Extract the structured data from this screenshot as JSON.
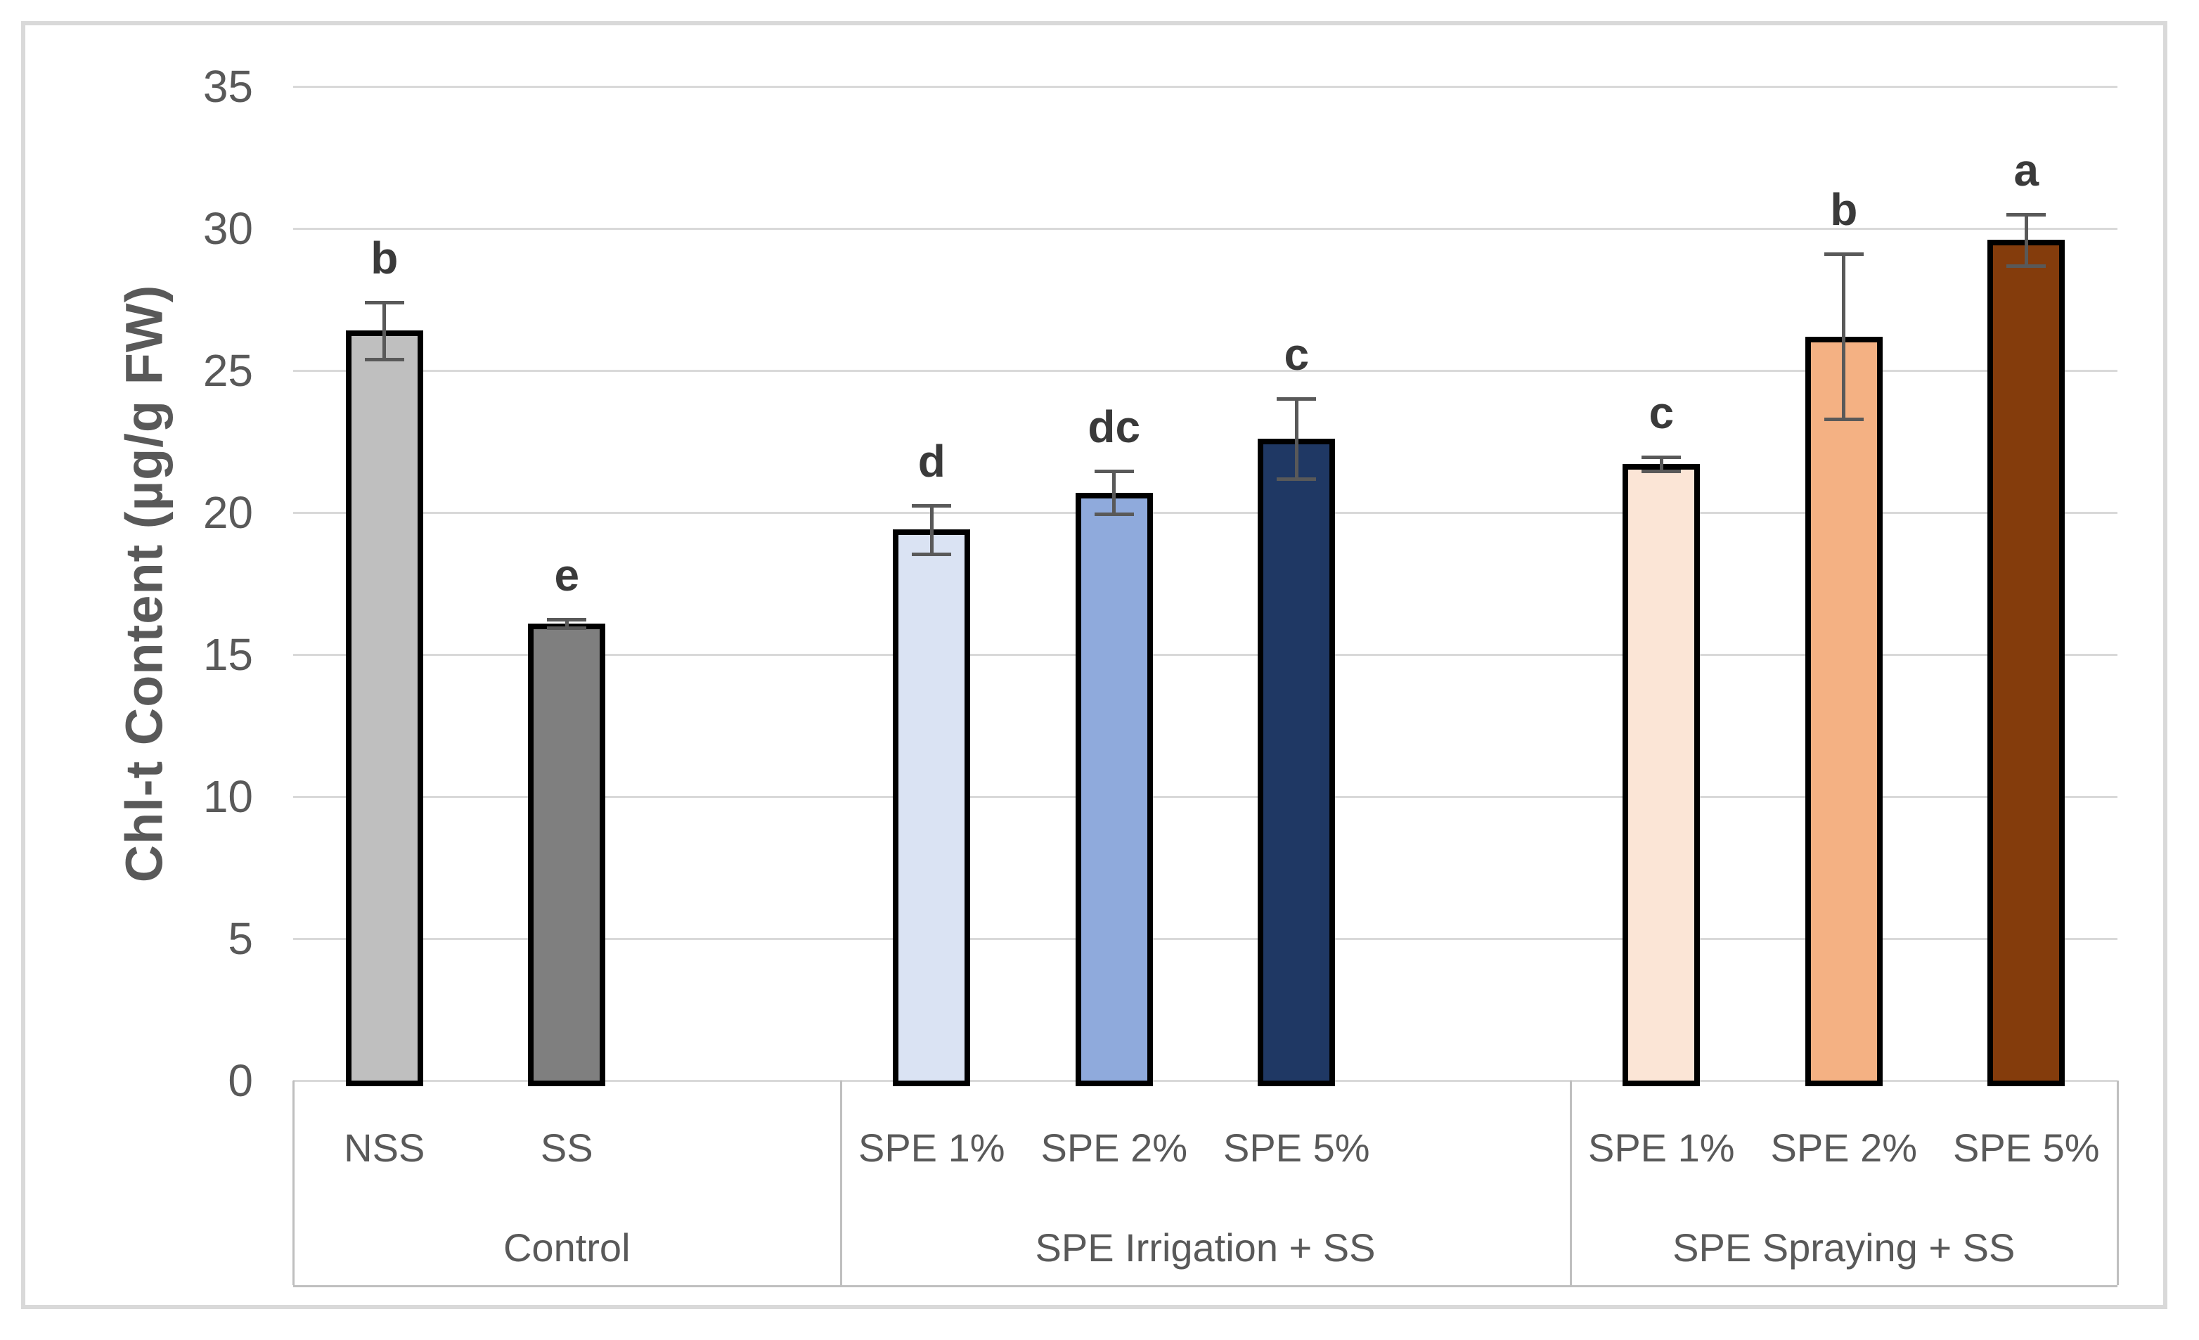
{
  "figure": {
    "background": "#ffffff",
    "border_color": "#d9d9d9"
  },
  "chart_data": {
    "type": "bar",
    "title": "",
    "xlabel": "",
    "ylabel": "Chl-t Content (µg/g FW)",
    "ylim": [
      0,
      35
    ],
    "yticks": [
      0,
      5,
      10,
      15,
      20,
      25,
      30,
      35
    ],
    "grid": "horizontal",
    "legend_position": "none",
    "groups": [
      {
        "label": "Control",
        "bars": [
          {
            "category": "NSS",
            "value": 26.4,
            "error": 1.0,
            "letter": "b",
            "fill": "#bfbfbf"
          },
          {
            "category": "SS",
            "value": 16.1,
            "error": 0.15,
            "letter": "e",
            "fill": "#7f7f7f"
          }
        ]
      },
      {
        "label": "SPE Irrigation + SS",
        "bars": [
          {
            "category": "SPE 1%",
            "value": 19.4,
            "error": 0.85,
            "letter": "d",
            "fill": "#dae3f3"
          },
          {
            "category": "SPE 2%",
            "value": 20.7,
            "error": 0.75,
            "letter": "dc",
            "fill": "#8faadc"
          },
          {
            "category": "SPE 5%",
            "value": 22.6,
            "error": 1.4,
            "letter": "c",
            "fill": "#1f3864"
          }
        ]
      },
      {
        "label": "SPE Spraying + SS",
        "bars": [
          {
            "category": "SPE 1%",
            "value": 21.7,
            "error": 0.25,
            "letter": "c",
            "fill": "#fbe5d6"
          },
          {
            "category": "SPE 2%",
            "value": 26.2,
            "error": 2.9,
            "letter": "b",
            "fill": "#f4b183"
          },
          {
            "category": "SPE 5%",
            "value": 29.6,
            "error": 0.9,
            "letter": "a",
            "fill": "#843c0c"
          }
        ]
      }
    ],
    "styles": {
      "bar_border_color": "#000000",
      "error_bar_color": "#595959",
      "letter_color": "#3a3a3a",
      "axis_text_color": "#595959",
      "gridline_color": "#d9d9d9",
      "category_box_line_color": "#bfbfbf"
    }
  }
}
